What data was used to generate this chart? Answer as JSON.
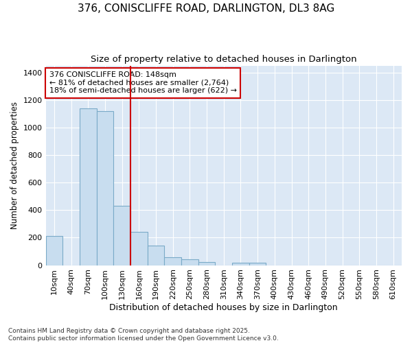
{
  "title": "376, CONISCLIFFE ROAD, DARLINGTON, DL3 8AG",
  "subtitle": "Size of property relative to detached houses in Darlington",
  "xlabel": "Distribution of detached houses by size in Darlington",
  "ylabel": "Number of detached properties",
  "footnote": "Contains HM Land Registry data © Crown copyright and database right 2025.\nContains public sector information licensed under the Open Government Licence v3.0.",
  "categories": [
    "10sqm",
    "40sqm",
    "70sqm",
    "100sqm",
    "130sqm",
    "160sqm",
    "190sqm",
    "220sqm",
    "250sqm",
    "280sqm",
    "310sqm",
    "340sqm",
    "370sqm",
    "400sqm",
    "430sqm",
    "460sqm",
    "490sqm",
    "520sqm",
    "550sqm",
    "580sqm",
    "610sqm"
  ],
  "values": [
    210,
    0,
    1140,
    1120,
    430,
    240,
    140,
    60,
    45,
    25,
    0,
    20,
    20,
    0,
    0,
    0,
    0,
    0,
    0,
    0,
    0
  ],
  "bar_color": "#c8ddef",
  "bar_edge_color": "#7aaac8",
  "vline_x": 5,
  "vline_color": "#cc0000",
  "ylim": [
    0,
    1450
  ],
  "yticks": [
    0,
    200,
    400,
    600,
    800,
    1000,
    1200,
    1400
  ],
  "annotation_text": "376 CONISCLIFFE ROAD: 148sqm\n← 81% of detached houses are smaller (2,764)\n18% of semi-detached houses are larger (622) →",
  "annotation_box_color": "#ffffff",
  "annotation_box_edge": "#cc0000",
  "bg_color": "#ffffff",
  "plot_bg_color": "#dce8f5",
  "grid_color": "#ffffff",
  "title_fontsize": 11,
  "subtitle_fontsize": 9.5,
  "xlabel_fontsize": 9,
  "ylabel_fontsize": 8.5,
  "tick_fontsize": 8,
  "annot_fontsize": 8,
  "footnote_fontsize": 6.5
}
